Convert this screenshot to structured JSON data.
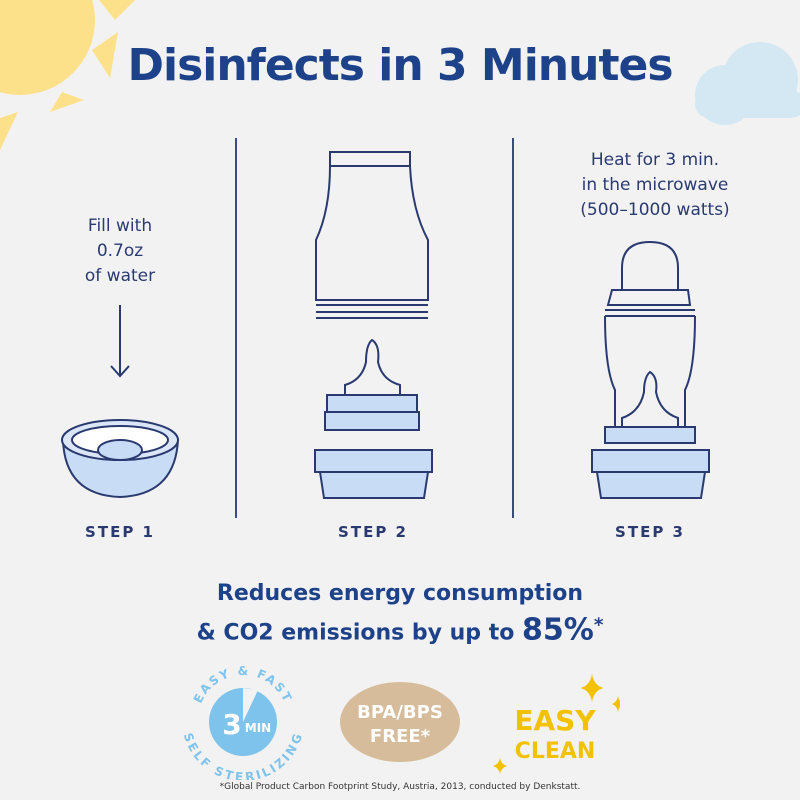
{
  "title": "Disinfects in 3 Minutes",
  "steps": [
    {
      "label": "STEP 1",
      "text_lines": [
        "Fill with",
        "0.7oz",
        "of water"
      ]
    },
    {
      "label": "STEP 2"
    },
    {
      "label": "STEP 3",
      "text_lines": [
        "Heat for 3 min.",
        "in the microwave",
        "(500–1000 watts)"
      ]
    }
  ],
  "energy": {
    "line1": "Reduces energy consumption",
    "line2": "& CO2 emissions by up to ",
    "percent": "85%",
    "asterisk": "*"
  },
  "badges": {
    "sterilizing": {
      "top": "EASY & FAST",
      "bottom": "SELF STERILIZING",
      "number": "3",
      "unit": "MIN",
      "color": "#7ec3ec"
    },
    "bpa": {
      "line1": "BPA/BPS",
      "line2": "FREE*",
      "color": "#d6bc9b"
    },
    "clean": {
      "line1": "EASY",
      "line2": "CLEAN",
      "color": "#f2c200"
    }
  },
  "footnote": "*Global Product Carbon Footprint Study, Austria, 2013, conducted by Denkstatt.",
  "colors": {
    "navy": "#1d4289",
    "light_blue": "#c9dcf5",
    "sun": "#fde18a",
    "cloud": "#d3e8f3"
  }
}
